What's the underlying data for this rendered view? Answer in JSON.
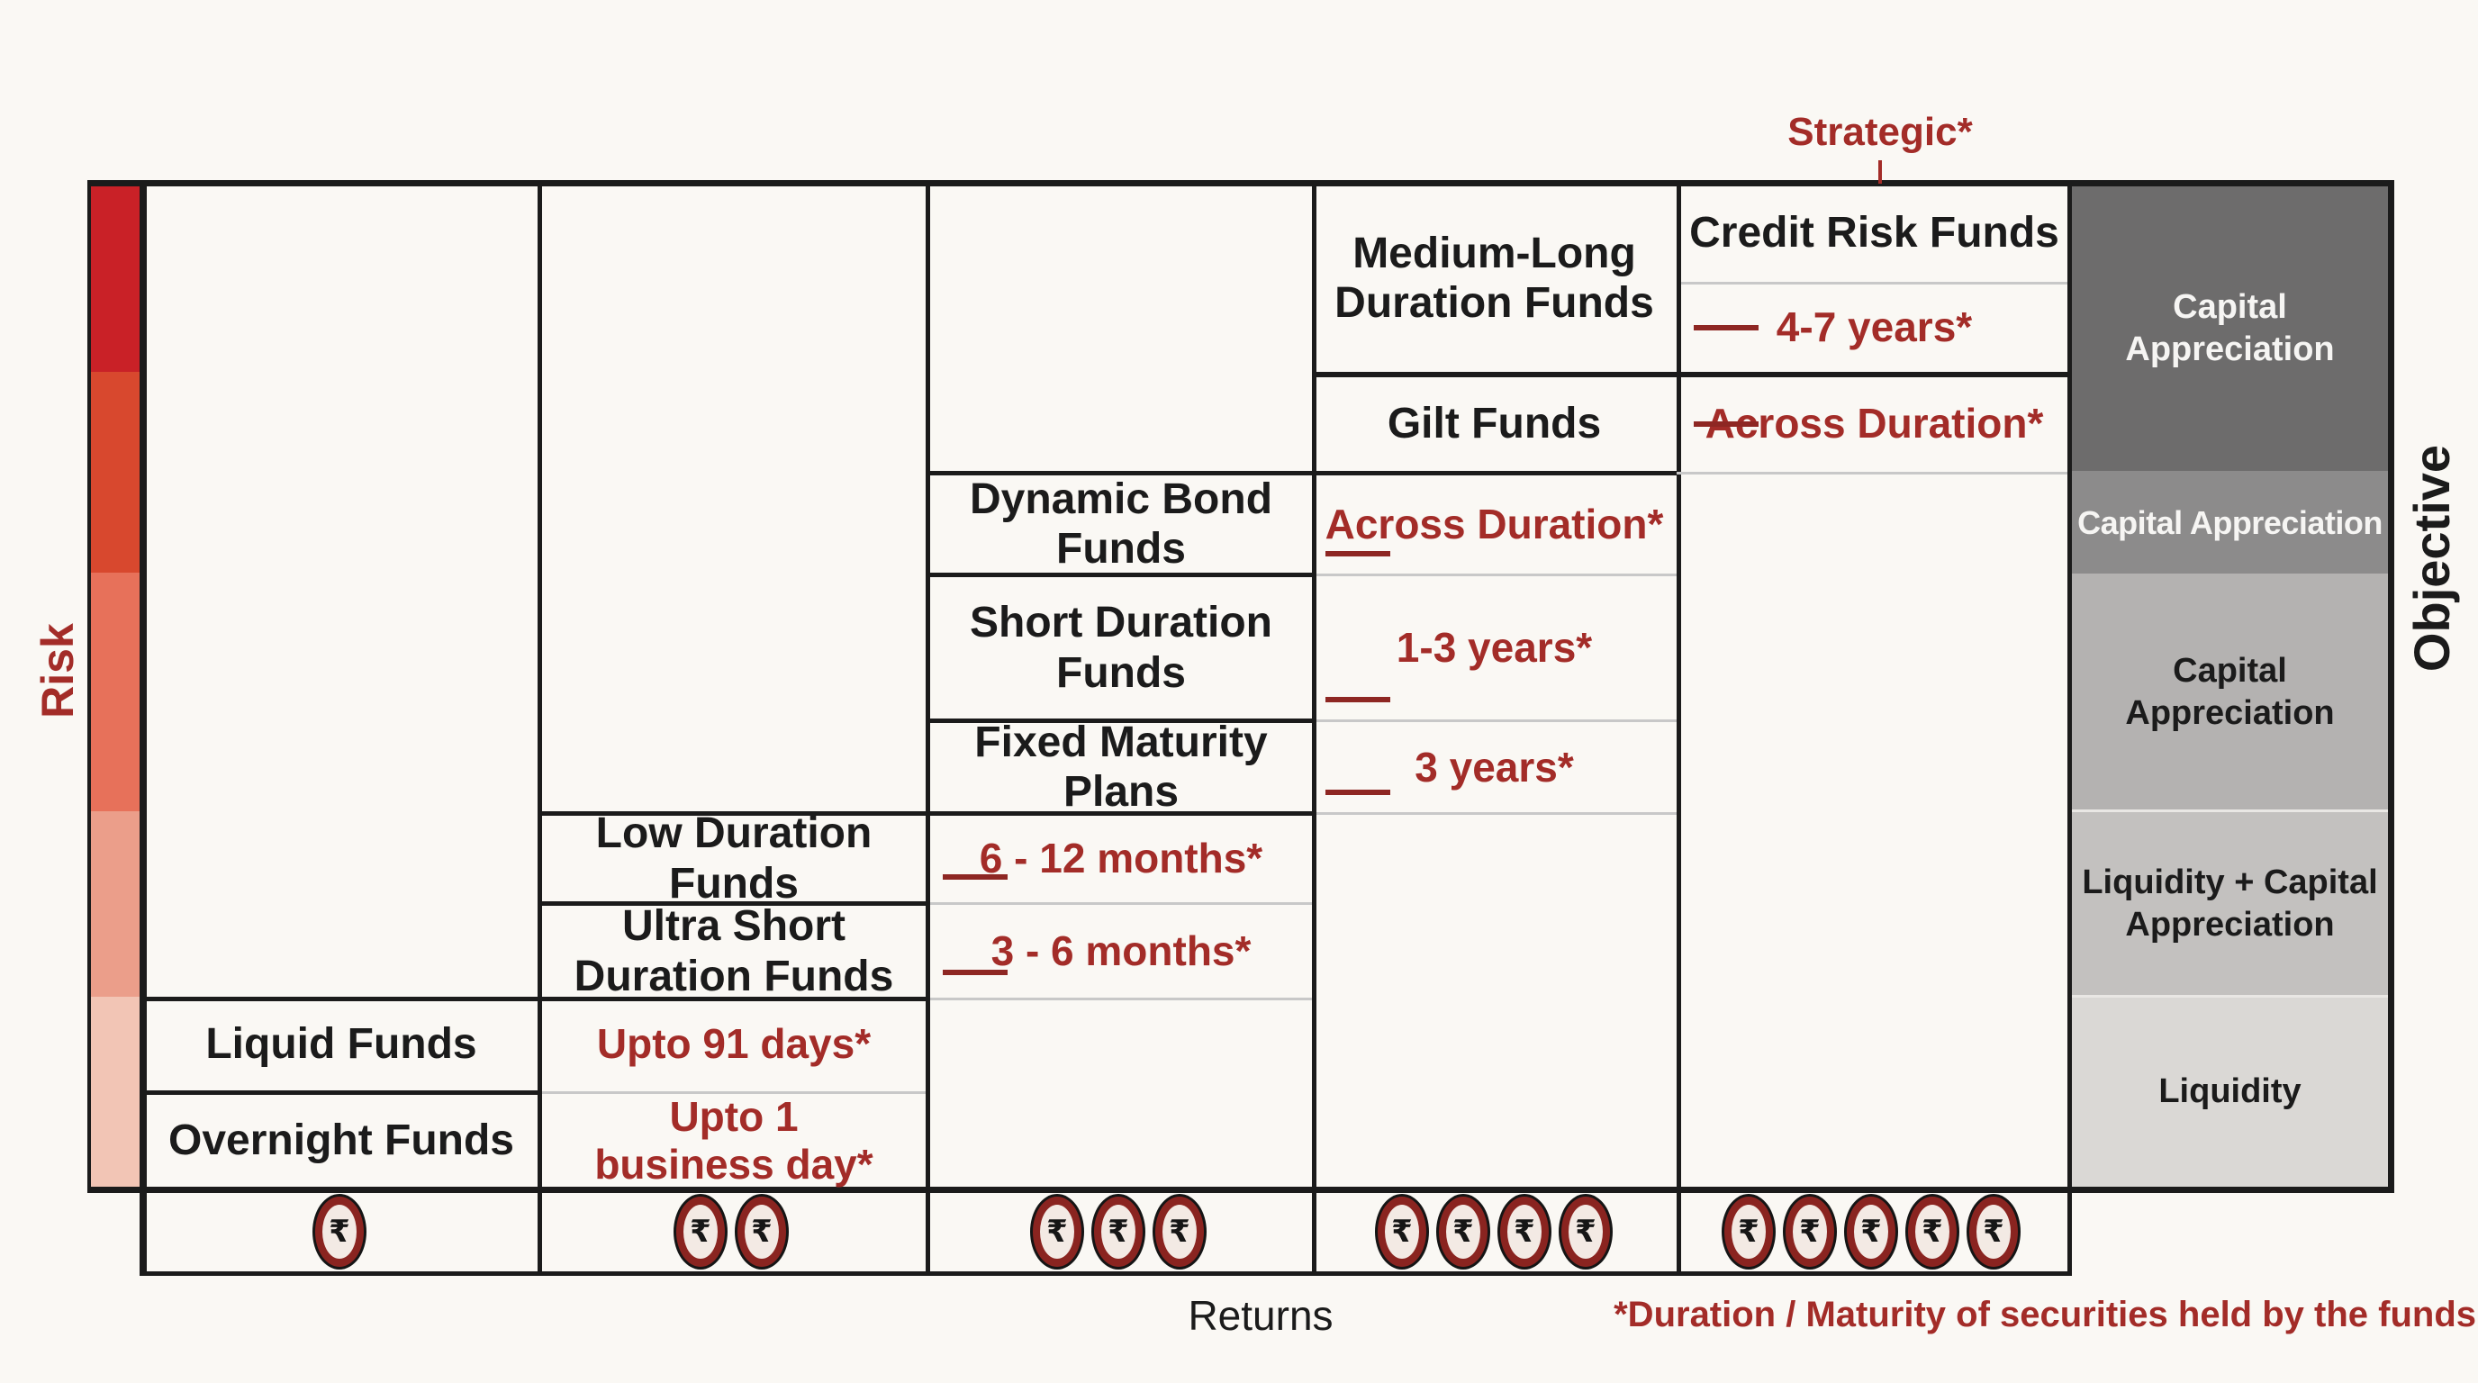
{
  "axes": {
    "risk": "Risk",
    "returns": "Returns",
    "objective": "Objective"
  },
  "annotations": {
    "strategic": "Strategic*",
    "footnote": "*Duration / Maturity of securities held by the funds"
  },
  "funds": {
    "credit_risk": {
      "label": "Credit Risk Funds"
    },
    "medium_long": {
      "label": "Medium-Long\nDuration Funds",
      "duration": "4-7 years*"
    },
    "gilt": {
      "label": "Gilt Funds",
      "duration": "Across Duration*"
    },
    "dynamic": {
      "label": "Dynamic Bond Funds",
      "duration": "Across Duration*"
    },
    "short": {
      "label": "Short Duration\nFunds",
      "duration": "1-3 years*"
    },
    "fixed_maturity": {
      "label": "Fixed Maturity Plans",
      "duration": "3 years*"
    },
    "low": {
      "label": "Low Duration Funds",
      "duration": "6 - 12 months*"
    },
    "ultra_short": {
      "label": "Ultra Short\nDuration Funds",
      "duration": "3 - 6 months*"
    },
    "liquid": {
      "label": "Liquid Funds",
      "duration": "Upto 91 days*"
    },
    "overnight": {
      "label": "Overnight Funds",
      "duration": "Upto 1\nbusiness day*"
    }
  },
  "objectives": [
    {
      "label": "Capital\nAppreciation",
      "bg": "#6d6c6c",
      "fg": "#f6f5f3"
    },
    {
      "label": "Capital Appreciation",
      "bg": "#8c8b8b",
      "fg": "#f6f5f3"
    },
    {
      "label": "Capital\nAppreciation",
      "bg": "#b4b2b1",
      "fg": "#1b1b1b"
    },
    {
      "label": "Liquidity + Capital\nAppreciation",
      "bg": "#c3c1bf",
      "fg": "#1b1b1b"
    },
    {
      "label": "Liquidity",
      "bg": "#dad8d5",
      "fg": "#1b1b1b"
    }
  ],
  "risk_gradient": [
    "#c92127",
    "#d8482e",
    "#e7715a",
    "#eb9e8a",
    "#f2c5b5"
  ],
  "returns_coins": {
    "symbol": "₹",
    "counts": [
      1,
      2,
      3,
      4,
      5
    ]
  },
  "colors": {
    "accent_red": "#a32c28",
    "dash_maroon": "#8e2723",
    "coin_ring": "#8a2420",
    "coin_face": "#f3eae4",
    "line_black": "#1b1b1b",
    "line_gray": "#c8c8c8",
    "background": "#faf8f4"
  }
}
